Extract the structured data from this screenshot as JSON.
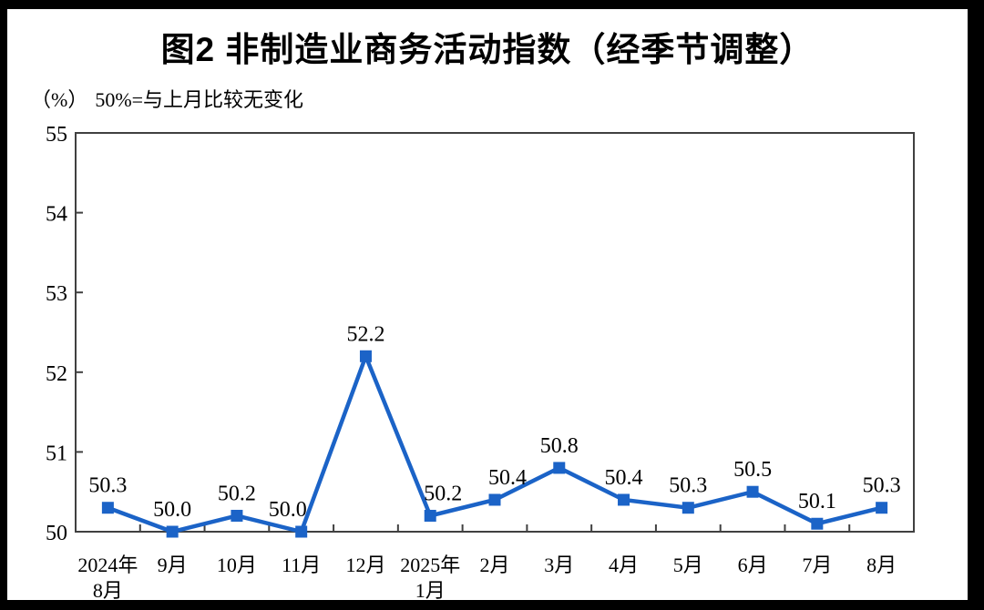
{
  "title": "图2 非制造业商务活动指数（经季节调整）",
  "unit_label": "（%）",
  "axis_note": "50%=与上月比较无变化",
  "colors": {
    "line": "#1B63C7",
    "marker": "#1B63C7",
    "axis": "#404040",
    "text": "#000000",
    "outer_frame": "#000000",
    "background": "#FFFFFF"
  },
  "chart_data": {
    "type": "line",
    "title": "图2 非制造业商务活动指数（经季节调整）",
    "unit": "（%）",
    "annotation": "50%=与上月比较无变化",
    "categories": [
      "2024年\n8月",
      "9月",
      "10月",
      "11月",
      "12月",
      "2025年\n1月",
      "2月",
      "3月",
      "4月",
      "5月",
      "6月",
      "7月",
      "8月"
    ],
    "series": [
      {
        "name": "非制造业商务活动指数",
        "values": [
          50.3,
          50.0,
          50.2,
          50.0,
          52.2,
          50.2,
          50.4,
          50.8,
          50.4,
          50.3,
          50.5,
          50.1,
          50.3
        ],
        "data_labels": [
          "50.3",
          "50.0",
          "50.2",
          "50.0",
          "52.2",
          "50.2",
          "50.4",
          "50.8",
          "50.4",
          "50.3",
          "50.5",
          "50.1",
          "50.3"
        ]
      }
    ],
    "ylim": [
      50,
      55
    ],
    "yticks": [
      50,
      51,
      52,
      53,
      54,
      55
    ],
    "xlabel": "",
    "ylabel": "（%）",
    "grid": false,
    "legend": false,
    "marker_shape": "square"
  }
}
